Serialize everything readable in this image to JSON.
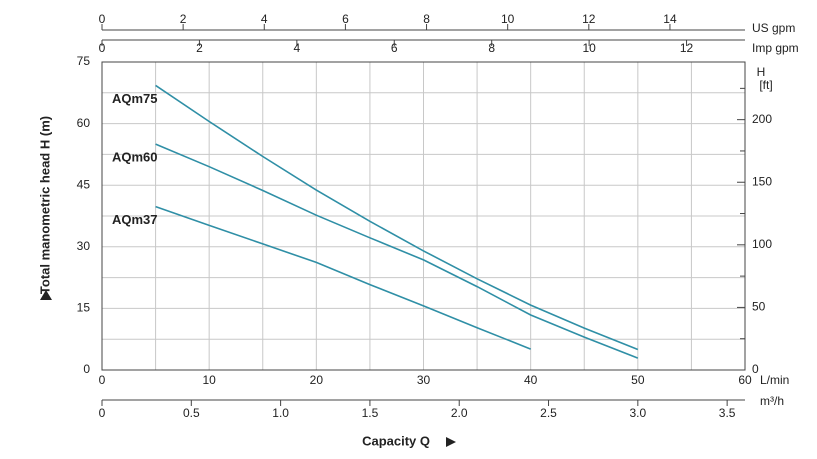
{
  "chart_data": {
    "type": "line",
    "ylabel": "Total manometric head H (m)",
    "xlabel": "Capacity Q",
    "x": [
      5,
      10,
      15,
      20,
      25,
      30,
      35,
      40,
      45,
      50
    ],
    "series": [
      {
        "name": "AQm75",
        "color": "#2f8fa6",
        "values": [
          69.3,
          60.5,
          52,
          43.8,
          36.2,
          29,
          22.2,
          15.8,
          10.2,
          5
        ]
      },
      {
        "name": "AQm60",
        "color": "#2f8fa6",
        "values": [
          55,
          49.5,
          43.7,
          37.7,
          32.2,
          26.8,
          20.3,
          13.4,
          8,
          2.9
        ]
      },
      {
        "name": "AQm37",
        "color": "#2f8fa6",
        "values": [
          39.8,
          35.2,
          30.7,
          26.2,
          20.8,
          15.6,
          10.3,
          5.1,
          null,
          null
        ]
      }
    ],
    "xunit": "L/min",
    "xlim": [
      0,
      60
    ],
    "xticks": [
      0,
      10,
      20,
      30,
      40,
      50,
      60
    ],
    "xminorticks": [
      5,
      15,
      25,
      35,
      45,
      55
    ],
    "ylim": [
      0,
      75
    ],
    "yticks": [
      0,
      15,
      30,
      45,
      60,
      75
    ],
    "yminorticks": [
      7.5,
      22.5,
      37.5,
      52.5,
      67.5
    ],
    "grid": true,
    "y2label": "H",
    "y2unit": "[ft]",
    "y2lim": [
      0,
      246.06
    ],
    "y2ticks": [
      0,
      50,
      100,
      150,
      200
    ],
    "y2minorticks": [
      25,
      75,
      125,
      175,
      225
    ],
    "top_axes": [
      {
        "label": "US gpm",
        "lim": [
          0,
          15.85
        ],
        "ticks": [
          0,
          2,
          4,
          6,
          8,
          10,
          12,
          14
        ]
      },
      {
        "label": "Imp gpm",
        "lim": [
          0,
          13.2
        ],
        "ticks": [
          0,
          2,
          4,
          6,
          8,
          10,
          12
        ]
      }
    ],
    "bottom_axis2": {
      "label": "m³/h",
      "lim": [
        0,
        3.6
      ],
      "ticks": [
        0,
        0.5,
        {
          "value": 1,
          "label": "1.0"
        },
        1.5,
        {
          "value": 2,
          "label": "2.0"
        },
        2.5,
        {
          "value": 3,
          "label": "3.0"
        },
        3.5
      ]
    }
  }
}
